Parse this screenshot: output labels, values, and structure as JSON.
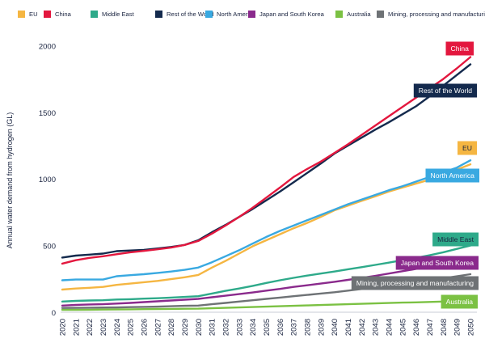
{
  "chart_data": {
    "type": "line",
    "title": "",
    "xlabel": "",
    "ylabel": "Annual water demand from hydrogen (GL)",
    "xlim": [
      2020,
      2050
    ],
    "ylim": [
      0,
      2100
    ],
    "yticks": [
      0,
      500,
      1000,
      1500,
      2000
    ],
    "legend_position": "top",
    "grid": false,
    "x": [
      2020,
      2021,
      2022,
      2023,
      2024,
      2025,
      2026,
      2027,
      2028,
      2029,
      2030,
      2031,
      2032,
      2033,
      2034,
      2035,
      2036,
      2037,
      2038,
      2039,
      2040,
      2041,
      2042,
      2043,
      2044,
      2045,
      2046,
      2047,
      2048,
      2049,
      2050
    ],
    "series": [
      {
        "name": "EU",
        "color": "#f5b642",
        "end_label": "EU",
        "label_text_color": "#1a2440",
        "values": [
          170,
          178,
          183,
          190,
          205,
          215,
          225,
          235,
          248,
          262,
          280,
          335,
          385,
          440,
          495,
          540,
          585,
          630,
          670,
          715,
          765,
          800,
          835,
          870,
          905,
          935,
          965,
          995,
          1030,
          1070,
          1110
        ]
      },
      {
        "name": "China",
        "color": "#e3173e",
        "end_label": "China",
        "label_text_color": "#ffffff",
        "values": [
          365,
          390,
          408,
          420,
          435,
          450,
          460,
          472,
          485,
          505,
          535,
          590,
          650,
          715,
          785,
          860,
          935,
          1015,
          1075,
          1130,
          1195,
          1260,
          1330,
          1400,
          1470,
          1540,
          1610,
          1680,
          1750,
          1830,
          1915
        ]
      },
      {
        "name": "Middle East",
        "color": "#2eaa8a",
        "end_label": "Middle East",
        "label_text_color": "#1a2440",
        "values": [
          80,
          85,
          88,
          90,
          95,
          98,
          102,
          105,
          110,
          115,
          120,
          140,
          160,
          178,
          198,
          220,
          240,
          258,
          275,
          290,
          305,
          322,
          338,
          355,
          372,
          390,
          408,
          428,
          450,
          475,
          500
        ]
      },
      {
        "name": "Rest of the World",
        "color": "#142a4d",
        "end_label": "Rest of the World",
        "label_text_color": "#ffffff",
        "values": [
          410,
          425,
          432,
          440,
          458,
          463,
          468,
          478,
          490,
          505,
          540,
          600,
          655,
          715,
          775,
          840,
          905,
          975,
          1045,
          1115,
          1190,
          1250,
          1310,
          1370,
          1425,
          1485,
          1545,
          1620,
          1700,
          1780,
          1860
        ]
      },
      {
        "name": "North America",
        "color": "#39a9e1",
        "end_label": "North America",
        "label_text_color": "#ffffff",
        "values": [
          240,
          245,
          245,
          245,
          270,
          278,
          285,
          295,
          305,
          318,
          335,
          375,
          420,
          465,
          515,
          565,
          610,
          650,
          690,
          730,
          770,
          810,
          845,
          880,
          915,
          945,
          980,
          1015,
          1050,
          1085,
          1140
        ]
      },
      {
        "name": "Japan and South Korea",
        "color": "#8a2a8c",
        "end_label": "Japan and South Korea",
        "label_text_color": "#ffffff",
        "values": [
          50,
          55,
          58,
          60,
          65,
          70,
          76,
          82,
          88,
          94,
          100,
          112,
          124,
          136,
          148,
          162,
          175,
          190,
          202,
          215,
          228,
          243,
          258,
          273,
          290,
          308,
          325,
          343,
          360,
          378,
          395
        ]
      },
      {
        "name": "Australia",
        "color": "#7bc143",
        "end_label": "Australia",
        "label_text_color": "#ffffff",
        "values": [
          18,
          18,
          19,
          20,
          21,
          22,
          23,
          24,
          25,
          26,
          27,
          30,
          33,
          36,
          39,
          42,
          45,
          48,
          51,
          54,
          57,
          60,
          63,
          66,
          69,
          72,
          74,
          77,
          80,
          84,
          88
        ]
      },
      {
        "name": "Mining, processing and manufacturing",
        "color": "#6e7275",
        "end_label": "Mining, processing and manufacturing",
        "label_text_color": "#ffffff",
        "values": [
          32,
          33,
          34,
          35,
          36,
          38,
          40,
          42,
          45,
          48,
          50,
          60,
          70,
          80,
          90,
          100,
          110,
          120,
          130,
          140,
          150,
          162,
          174,
          186,
          198,
          212,
          226,
          240,
          255,
          270,
          285
        ]
      }
    ]
  }
}
